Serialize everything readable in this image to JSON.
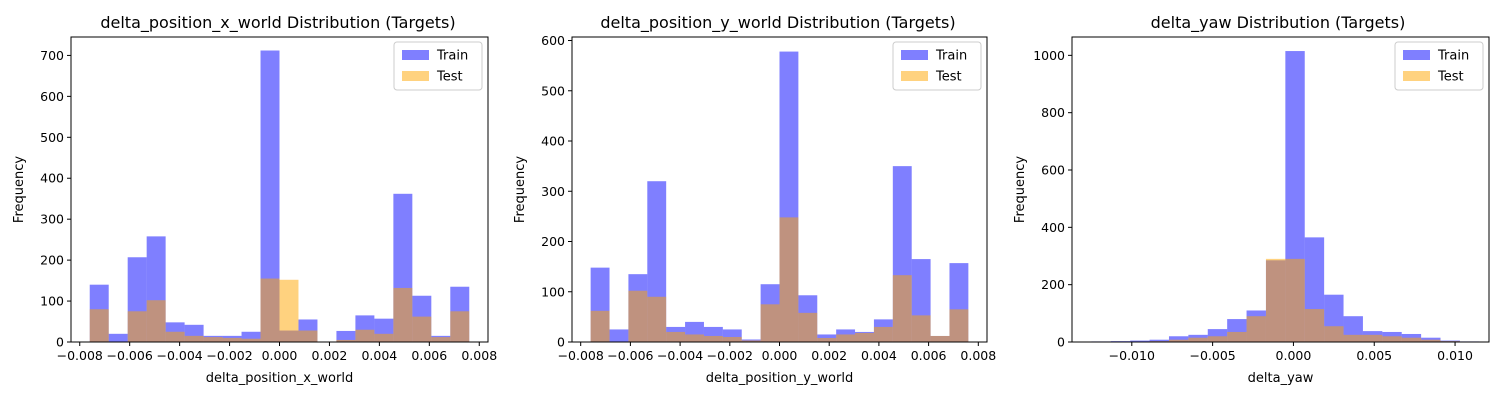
{
  "colors": {
    "train": "#0000ff",
    "test": "#ffa500",
    "bar_alpha_train": 0.5,
    "bar_alpha_test": 0.5
  },
  "chart_data": [
    {
      "type": "bar",
      "title": "delta_position_x_world Distribution (Targets)",
      "xlabel": "delta_position_x_world",
      "ylabel": "Frequency",
      "xlim": [
        -0.00835,
        0.00835
      ],
      "ylim": [
        0,
        745
      ],
      "xticks": [
        -0.008,
        -0.006,
        -0.004,
        -0.002,
        0.0,
        0.002,
        0.004,
        0.006,
        0.008
      ],
      "xtick_labels": [
        "−0.008",
        "−0.006",
        "−0.004",
        "−0.002",
        "0.000",
        "0.002",
        "0.004",
        "0.006",
        "0.008"
      ],
      "yticks": [
        0,
        100,
        200,
        300,
        400,
        500,
        600,
        700
      ],
      "legend": {
        "position": "top-right",
        "entries": [
          "Train",
          "Test"
        ]
      },
      "series": [
        {
          "name": "Train",
          "edges": [
            -0.0076,
            -0.00684,
            -0.00608,
            -0.00532,
            -0.00456,
            -0.0038,
            -0.00304,
            -0.00228,
            -0.00152,
            -0.00076,
            0.0,
            0.00076,
            0.00152,
            0.00228,
            0.00304,
            0.0038,
            0.00456,
            0.00532,
            0.00608,
            0.00684,
            0.0076
          ],
          "values": [
            140,
            20,
            207,
            258,
            48,
            42,
            15,
            15,
            25,
            712,
            28,
            55,
            0,
            27,
            65,
            57,
            362,
            113,
            15,
            135
          ]
        },
        {
          "name": "Test",
          "edges": [
            -0.0076,
            -0.00684,
            -0.00608,
            -0.00532,
            -0.00456,
            -0.0038,
            -0.00304,
            -0.00228,
            -0.00152,
            -0.00076,
            0.0,
            0.00076,
            0.00152,
            0.00228,
            0.00304,
            0.0038,
            0.00456,
            0.00532,
            0.00608,
            0.00684,
            0.0076
          ],
          "values": [
            80,
            0,
            75,
            102,
            25,
            15,
            12,
            10,
            8,
            155,
            152,
            28,
            0,
            5,
            30,
            20,
            132,
            62,
            12,
            75
          ]
        }
      ]
    },
    {
      "type": "bar",
      "title": "delta_position_y_world Distribution (Targets)",
      "xlabel": "delta_position_y_world",
      "ylabel": "Frequency",
      "xlim": [
        -0.00835,
        0.00835
      ],
      "ylim": [
        0,
        607
      ],
      "xticks": [
        -0.008,
        -0.006,
        -0.004,
        -0.002,
        0.0,
        0.002,
        0.004,
        0.006,
        0.008
      ],
      "xtick_labels": [
        "−0.008",
        "−0.006",
        "−0.004",
        "−0.002",
        "0.000",
        "0.002",
        "0.004",
        "0.006",
        "0.008"
      ],
      "yticks": [
        0,
        100,
        200,
        300,
        400,
        500,
        600
      ],
      "legend": {
        "position": "top-right",
        "entries": [
          "Train",
          "Test"
        ]
      },
      "series": [
        {
          "name": "Train",
          "edges": [
            -0.0076,
            -0.00684,
            -0.00608,
            -0.00532,
            -0.00456,
            -0.0038,
            -0.00304,
            -0.00228,
            -0.00152,
            -0.00076,
            0.0,
            0.00076,
            0.00152,
            0.00228,
            0.00304,
            0.0038,
            0.00456,
            0.00532,
            0.00608,
            0.00684,
            0.0076
          ],
          "values": [
            148,
            25,
            135,
            320,
            30,
            40,
            30,
            25,
            5,
            115,
            578,
            93,
            15,
            25,
            20,
            45,
            350,
            165,
            12,
            157
          ]
        },
        {
          "name": "Test",
          "edges": [
            -0.0076,
            -0.00684,
            -0.00608,
            -0.00532,
            -0.00456,
            -0.0038,
            -0.00304,
            -0.00228,
            -0.00152,
            -0.00076,
            0.0,
            0.00076,
            0.00152,
            0.00228,
            0.00304,
            0.0038,
            0.00456,
            0.00532,
            0.00608,
            0.00684,
            0.0076
          ],
          "values": [
            62,
            0,
            102,
            90,
            20,
            15,
            12,
            10,
            3,
            75,
            248,
            58,
            8,
            15,
            18,
            30,
            133,
            53,
            12,
            65
          ]
        }
      ]
    },
    {
      "type": "bar",
      "title": "delta_yaw Distribution (Targets)",
      "xlabel": "delta_yaw",
      "ylabel": "Frequency",
      "xlim": [
        -0.0137,
        0.0121
      ],
      "ylim": [
        0,
        1064
      ],
      "xticks": [
        -0.01,
        -0.005,
        0.0,
        0.005,
        0.01
      ],
      "xtick_labels": [
        "−0.010",
        "−0.005",
        "0.000",
        "0.005",
        "0.010"
      ],
      "yticks": [
        0,
        200,
        400,
        600,
        800,
        1000
      ],
      "legend": {
        "position": "top-right",
        "entries": [
          "Train",
          "Test"
        ]
      },
      "series": [
        {
          "name": "Train",
          "edges": [
            -0.0125,
            -0.0113,
            -0.0101,
            -0.0089,
            -0.0077,
            -0.0065,
            -0.0053,
            -0.0041,
            -0.0029,
            -0.0017,
            -0.0005,
            0.0007,
            0.0019,
            0.0031,
            0.0043,
            0.0055,
            0.0067,
            0.0079,
            0.0091,
            0.0103,
            0.0115
          ],
          "values": [
            2,
            3,
            5,
            8,
            20,
            25,
            45,
            80,
            110,
            285,
            1015,
            365,
            165,
            90,
            38,
            35,
            28,
            15,
            5,
            2
          ]
        },
        {
          "name": "Test",
          "edges": [
            -0.0125,
            -0.0113,
            -0.0101,
            -0.0089,
            -0.0077,
            -0.0065,
            -0.0053,
            -0.0041,
            -0.0029,
            -0.0017,
            -0.0005,
            0.0007,
            0.0019,
            0.0031,
            0.0043,
            0.0055,
            0.0067,
            0.0079,
            0.0091,
            0.0103,
            0.0115
          ],
          "values": [
            0,
            0,
            0,
            3,
            8,
            15,
            20,
            35,
            90,
            290,
            290,
            115,
            55,
            25,
            25,
            20,
            15,
            8,
            3,
            0
          ]
        }
      ]
    }
  ]
}
